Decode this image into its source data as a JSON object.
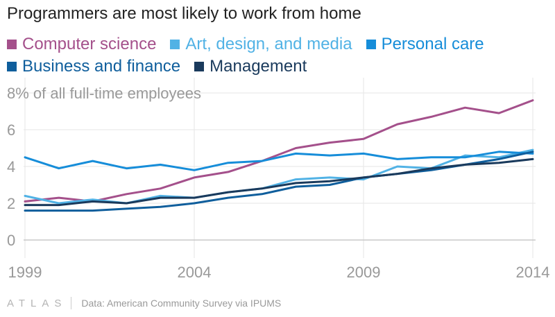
{
  "chart_data": {
    "type": "line",
    "title": "Programmers are most likely to work from home",
    "ylabel": "% of all full-time employees",
    "x": [
      1999,
      2000,
      2001,
      2002,
      2003,
      2004,
      2005,
      2006,
      2007,
      2008,
      2009,
      2010,
      2011,
      2012,
      2013,
      2014
    ],
    "x_ticks": [
      "1999",
      "2004",
      "2009",
      "2014"
    ],
    "y_ticks": [
      "0",
      "2",
      "4",
      "6",
      "8"
    ],
    "ylim": [
      0,
      8
    ],
    "grid": true,
    "legend_position": "top",
    "series": [
      {
        "name": "Computer science",
        "color": "#a4508b",
        "values": [
          2.1,
          2.3,
          2.1,
          2.5,
          2.8,
          3.4,
          3.7,
          4.3,
          5.0,
          5.3,
          5.5,
          6.3,
          6.7,
          7.2,
          6.9,
          7.6
        ]
      },
      {
        "name": "Art, design, and media",
        "color": "#51b2e5",
        "values": [
          2.4,
          2.0,
          2.2,
          2.0,
          2.4,
          2.3,
          2.6,
          2.8,
          3.3,
          3.4,
          3.3,
          4.0,
          3.9,
          4.6,
          4.5,
          4.9
        ]
      },
      {
        "name": "Personal care",
        "color": "#168dd9",
        "values": [
          4.5,
          3.9,
          4.3,
          3.9,
          4.1,
          3.8,
          4.2,
          4.3,
          4.7,
          4.6,
          4.7,
          4.4,
          4.5,
          4.5,
          4.8,
          4.7
        ]
      },
      {
        "name": "Business and finance",
        "color": "#0f5e9c",
        "values": [
          1.6,
          1.6,
          1.6,
          1.7,
          1.8,
          2.0,
          2.3,
          2.5,
          2.9,
          3.0,
          3.4,
          3.6,
          3.8,
          4.1,
          4.4,
          4.8
        ]
      },
      {
        "name": "Management",
        "color": "#1a3a5c",
        "values": [
          1.9,
          1.9,
          2.1,
          2.0,
          2.3,
          2.3,
          2.6,
          2.8,
          3.1,
          3.2,
          3.4,
          3.6,
          3.9,
          4.1,
          4.2,
          4.4
        ]
      }
    ]
  },
  "colors": {
    "grid": "#e6e6e6",
    "axis": "#c8c8c8",
    "tick_text": "#999999",
    "title": "#222222"
  },
  "footer": {
    "brand": "ATLAS",
    "source": "Data: American Community Survey via IPUMS"
  }
}
